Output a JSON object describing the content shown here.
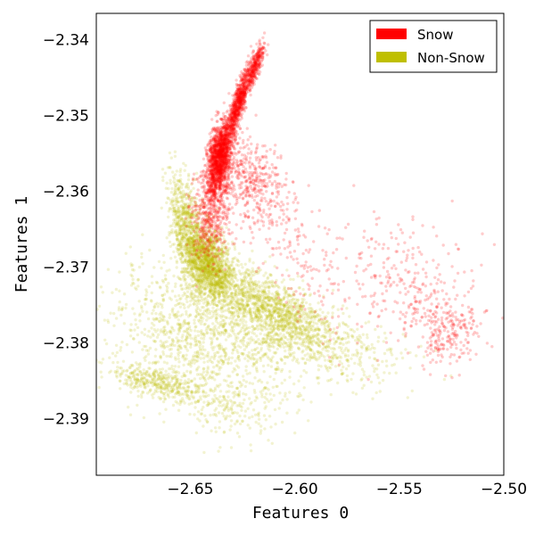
{
  "chart_data": {
    "type": "scatter",
    "title": "",
    "xlabel": "Features 0",
    "ylabel": "Features 1",
    "xlim": [
      -2.695,
      -2.5
    ],
    "ylim": [
      -2.3975,
      -2.3365
    ],
    "xticks": [
      -2.65,
      -2.6,
      -2.55,
      -2.5
    ],
    "xtick_labels": [
      "−2.65",
      "−2.60",
      "−2.55",
      "−2.50"
    ],
    "yticks": [
      -2.34,
      -2.35,
      -2.36,
      -2.37,
      -2.38,
      -2.39
    ],
    "ytick_labels": [
      "−2.34",
      "−2.35",
      "−2.36",
      "−2.37",
      "−2.38",
      "−2.39"
    ],
    "grid": false,
    "legend": {
      "position": "top-right",
      "entries": [
        {
          "label": "Snow",
          "color": "#ff0000"
        },
        {
          "label": "Non-Snow",
          "color": "#bfbf00"
        }
      ]
    },
    "series": [
      {
        "name": "Non-Snow",
        "color": "#bfbf00",
        "opacity": 0.18,
        "clusters": [
          {
            "n": 1500,
            "cx": -2.641,
            "cy": -2.3695,
            "sx": 0.006,
            "sy": 0.0025,
            "rho": -0.35
          },
          {
            "n": 1300,
            "cx": -2.612,
            "cy": -2.3755,
            "sx": 0.016,
            "sy": 0.0028,
            "rho": -0.65
          },
          {
            "n": 650,
            "cx": -2.652,
            "cy": -2.3645,
            "sx": 0.004,
            "sy": 0.0035,
            "rho": -0.5
          },
          {
            "n": 1100,
            "cx": -2.645,
            "cy": -2.379,
            "sx": 0.022,
            "sy": 0.0045,
            "rho": -0.2
          },
          {
            "n": 350,
            "cx": -2.665,
            "cy": -2.3855,
            "sx": 0.011,
            "sy": 0.0012,
            "rho": -0.6
          },
          {
            "n": 450,
            "cx": -2.59,
            "cy": -2.3805,
            "sx": 0.022,
            "sy": 0.0025,
            "rho": -0.4
          },
          {
            "n": 180,
            "cx": -2.632,
            "cy": -2.3885,
            "sx": 0.014,
            "sy": 0.0025,
            "rho": -0.2
          }
        ]
      },
      {
        "name": "Snow",
        "color": "#ff0000",
        "opacity": 0.2,
        "clusters": [
          {
            "n": 1500,
            "cx": -2.636,
            "cy": -2.3555,
            "sx": 0.003,
            "sy": 0.0022,
            "rho": 0.4
          },
          {
            "n": 800,
            "cx": -2.627,
            "cy": -2.3485,
            "sx": 0.003,
            "sy": 0.0025,
            "rho": 0.85
          },
          {
            "n": 300,
            "cx": -2.619,
            "cy": -2.3435,
            "sx": 0.002,
            "sy": 0.0015,
            "rho": 0.8
          },
          {
            "n": 550,
            "cx": -2.64,
            "cy": -2.3625,
            "sx": 0.005,
            "sy": 0.0032,
            "rho": 0.2
          },
          {
            "n": 400,
            "cx": -2.62,
            "cy": -2.359,
            "sx": 0.008,
            "sy": 0.0032,
            "rho": -0.3
          },
          {
            "n": 280,
            "cx": -2.547,
            "cy": -2.372,
            "sx": 0.016,
            "sy": 0.0048,
            "rho": -0.4
          },
          {
            "n": 200,
            "cx": -2.527,
            "cy": -2.3785,
            "sx": 0.008,
            "sy": 0.0022,
            "rho": 0.1
          },
          {
            "n": 150,
            "cx": -2.595,
            "cy": -2.37,
            "sx": 0.012,
            "sy": 0.0045,
            "rho": -0.5
          }
        ]
      }
    ]
  }
}
